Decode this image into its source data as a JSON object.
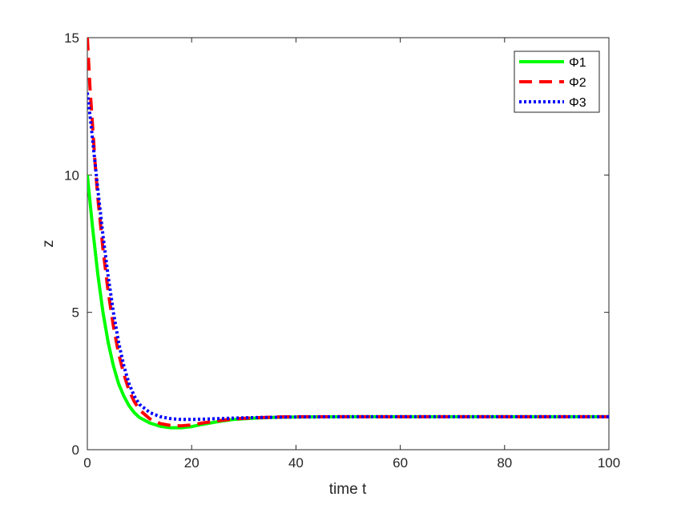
{
  "chart_data": {
    "type": "line",
    "title": "",
    "xlabel": "time t",
    "ylabel": "z",
    "xlim": [
      0,
      100
    ],
    "ylim": [
      0,
      15
    ],
    "xticks": [
      "0",
      "20",
      "40",
      "60",
      "80",
      "100"
    ],
    "yticks": [
      "0",
      "5",
      "10",
      "15"
    ],
    "grid": false,
    "legend_position": "top-right",
    "series": [
      {
        "name": "Φ1",
        "color": "#00ff00",
        "style": "solid",
        "x": [
          0,
          1,
          2,
          3,
          4,
          5,
          6,
          7,
          8,
          9,
          10,
          12,
          14,
          16,
          18,
          20,
          22,
          25,
          28,
          32,
          36,
          40,
          50,
          60,
          70,
          80,
          90,
          100
        ],
        "y": [
          10,
          8.1,
          6.4,
          5.0,
          3.9,
          3.05,
          2.4,
          1.95,
          1.6,
          1.35,
          1.17,
          0.97,
          0.85,
          0.8,
          0.8,
          0.84,
          0.92,
          1.02,
          1.1,
          1.15,
          1.18,
          1.19,
          1.2,
          1.2,
          1.2,
          1.2,
          1.2,
          1.2
        ]
      },
      {
        "name": "Φ2",
        "color": "#ff0000",
        "style": "dashed",
        "x": [
          0,
          0.5,
          1,
          1.5,
          2,
          3,
          4,
          5,
          6,
          7,
          8,
          9,
          10,
          12,
          14,
          16,
          18,
          20,
          22,
          25,
          28,
          32,
          36,
          40,
          50,
          60,
          70,
          80,
          90,
          100
        ],
        "y": [
          15,
          13.2,
          11.8,
          10.4,
          9.2,
          7.3,
          5.75,
          4.5,
          3.5,
          2.75,
          2.15,
          1.75,
          1.45,
          1.12,
          0.95,
          0.88,
          0.87,
          0.9,
          0.97,
          1.05,
          1.12,
          1.16,
          1.19,
          1.2,
          1.2,
          1.2,
          1.2,
          1.2,
          1.2,
          1.2
        ]
      },
      {
        "name": "Φ3",
        "color": "#0000ff",
        "style": "dotted",
        "x": [
          0,
          0.5,
          1,
          1.5,
          2,
          3,
          4,
          5,
          6,
          7,
          8,
          9,
          10,
          12,
          14,
          16,
          18,
          20,
          22,
          25,
          28,
          32,
          36,
          40,
          50,
          60,
          70,
          80,
          90,
          100
        ],
        "y": [
          13,
          12.2,
          11.3,
          10.4,
          9.5,
          7.8,
          6.3,
          5.0,
          3.9,
          3.05,
          2.4,
          1.95,
          1.65,
          1.35,
          1.2,
          1.13,
          1.1,
          1.1,
          1.11,
          1.13,
          1.15,
          1.17,
          1.18,
          1.19,
          1.2,
          1.2,
          1.2,
          1.2,
          1.2,
          1.2
        ]
      }
    ]
  }
}
